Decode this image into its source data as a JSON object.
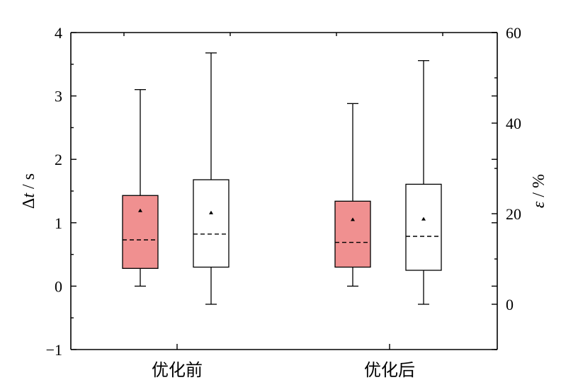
{
  "chart_data": {
    "type": "box",
    "categories": [
      "优化前",
      "优化后"
    ],
    "left_axis": {
      "label_symbol": "Δ",
      "label_var": "t",
      "label_unit": " / s",
      "ylim": [
        -1,
        4
      ],
      "ticks": [
        -1,
        0,
        1,
        2,
        3,
        4
      ],
      "tick_labels": [
        "−1",
        "0",
        "1",
        "2",
        "3",
        "4"
      ]
    },
    "right_axis": {
      "label_var": "ε",
      "label_unit": " / %",
      "ylim": [
        -10,
        60
      ],
      "ticks": [
        0,
        20,
        40,
        60
      ],
      "tick_labels": [
        "0",
        "20",
        "40",
        "60"
      ]
    },
    "series": [
      {
        "axis": "left",
        "color": "#f09090",
        "boxes": [
          {
            "category": "优化前",
            "whisker_low": 0.0,
            "q1": 0.28,
            "median": 0.73,
            "mean": 1.19,
            "q3": 1.43,
            "whisker_high": 3.1
          },
          {
            "category": "优化后",
            "whisker_low": 0.0,
            "q1": 0.3,
            "median": 0.69,
            "mean": 1.05,
            "q3": 1.34,
            "whisker_high": 2.88
          }
        ]
      },
      {
        "axis": "right",
        "color": "#ffffff",
        "boxes": [
          {
            "category": "优化前",
            "whisker_low": 0.0,
            "q1": 8.2,
            "median": 15.5,
            "mean": 20.2,
            "q3": 27.5,
            "whisker_high": 55.5
          },
          {
            "category": "优化后",
            "whisker_low": 0.0,
            "q1": 7.5,
            "median": 15.0,
            "mean": 18.8,
            "q3": 26.5,
            "whisker_high": 53.8
          }
        ]
      }
    ],
    "legend": "none",
    "grid": false
  }
}
